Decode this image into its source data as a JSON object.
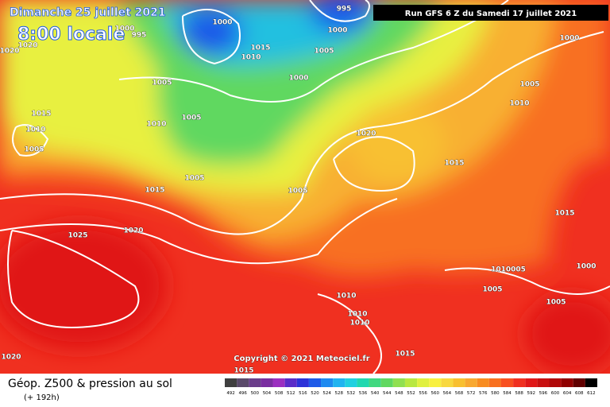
{
  "header": {
    "date": "Dimanche 25 juillet 2021",
    "time": "8:00 locale",
    "run": "Run GFS 6 Z du Samedi 17 juillet 2021"
  },
  "copyright": "Copyright © 2021 Meteociel.fr",
  "footer": {
    "title": "Géop. Z500 & pression au sol",
    "lead": "(+ 192h)"
  },
  "legend": {
    "labels": [
      492,
      496,
      500,
      504,
      508,
      512,
      516,
      520,
      524,
      528,
      532,
      536,
      540,
      544,
      548,
      552,
      556,
      560,
      564,
      568,
      572,
      576,
      580,
      584,
      588,
      592,
      596,
      600,
      604,
      608,
      612
    ],
    "colors": [
      "#3f3f3f",
      "#5a4a6a",
      "#6a3d8a",
      "#7a2ea0",
      "#9b2fc0",
      "#5a2cc8",
      "#2c32d8",
      "#1e5ae8",
      "#1e8af0",
      "#20b4f0",
      "#20d0e0",
      "#20d8b0",
      "#40d880",
      "#60d860",
      "#90e050",
      "#b8e840",
      "#e0f040",
      "#f8f040",
      "#f8d840",
      "#f8c030",
      "#f8a830",
      "#f88c20",
      "#f87020",
      "#f85020",
      "#f03020",
      "#e01818",
      "#c81010",
      "#b00808",
      "#900000",
      "#600000",
      "#000000"
    ]
  },
  "isobar_labels": [
    1000,
    995,
    1000,
    1020,
    1020,
    995,
    1000,
    1015,
    1010,
    1005,
    1000,
    1005,
    1005,
    1010,
    1015,
    1010,
    1005,
    1020,
    1005,
    1015,
    1005,
    1025,
    1020,
    1015,
    1010,
    1005,
    1000,
    1015,
    1010005,
    1005,
    1005,
    1000,
    1010,
    1010,
    1010,
    1015,
    1015,
    1020
  ]
}
